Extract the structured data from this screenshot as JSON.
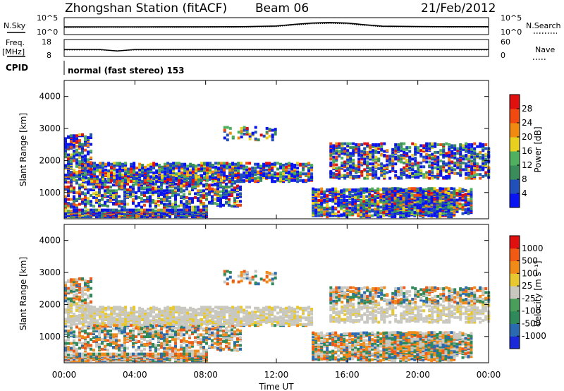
{
  "header": {
    "station": "Zhongshan Station (fitACF)",
    "beam": "Beam 06",
    "date": "21/Feb/2012"
  },
  "strips": {
    "nsky_label": "N.Sky",
    "nsearch_label": "N.Search",
    "nsky_ticks": [
      "10^5",
      "10^0"
    ],
    "freq_label_1": "Freq.",
    "freq_label_2": "[MHz]",
    "freq_ticks": [
      "18",
      "8"
    ],
    "nave_label": "Nave",
    "nave_ticks": [
      "60",
      "0"
    ],
    "cpid_label": "CPID",
    "cpid_text": "normal (fast stereo) 153"
  },
  "axes": {
    "ylabel": "Slant Range [km]",
    "xlabel": "Time UT",
    "y_ticks": [
      "1000",
      "2000",
      "3000",
      "4000"
    ],
    "x_ticks": [
      "00:00",
      "04:00",
      "08:00",
      "12:00",
      "16:00",
      "20:00",
      "00:00"
    ]
  },
  "colorbars": {
    "power": {
      "label": "Power [dB]",
      "ticks": [
        "4",
        "8",
        "12",
        "16",
        "20",
        "24",
        "28"
      ],
      "colors": [
        "#0a14f0",
        "#2050b8",
        "#3a8c5a",
        "#4fb060",
        "#e8d020",
        "#f08a10",
        "#f04a10",
        "#e01010"
      ]
    },
    "velocity": {
      "label": "Velocity [m s⁻¹]",
      "ticks": [
        "1000",
        "500",
        "100",
        "25",
        "-25",
        "-100",
        "-500",
        "-1000"
      ],
      "colors": [
        "#1a2ad8",
        "#2a6ab0",
        "#2f8a5a",
        "#4a9e5c",
        "#c8c8c0",
        "#e8c830",
        "#f08a18",
        "#f05a14",
        "#e01010"
      ]
    }
  },
  "chart_data": [
    {
      "type": "line",
      "name": "N.Sky / N.Search",
      "x_range": [
        "00:00",
        "24:00"
      ],
      "y_scale": "log",
      "y_range": [
        1,
        100000
      ],
      "note_series": "N.Sky solid, N.Search dotted",
      "x": [
        0,
        2,
        4,
        6,
        8,
        10,
        12,
        13,
        14,
        15,
        16,
        17,
        18,
        20,
        22,
        24
      ],
      "series": [
        {
          "values": [
            300,
            320,
            320,
            330,
            330,
            350,
            600,
            2000,
            5000,
            8000,
            5000,
            1500,
            500,
            400,
            350,
            350
          ]
        },
        {
          "values": [
            200,
            220,
            220,
            230,
            230,
            240,
            400,
            1200,
            3000,
            4000,
            3000,
            900,
            350,
            300,
            260,
            260
          ]
        }
      ]
    },
    {
      "type": "line",
      "name": "Freq / Nave",
      "x_range": [
        "00:00",
        "24:00"
      ],
      "y_range_freq": [
        8,
        18
      ],
      "y_range_nave": [
        0,
        60
      ],
      "x": [
        0,
        2,
        3,
        4,
        8,
        12,
        16,
        20,
        24
      ],
      "freq": [
        12.5,
        12.5,
        11.5,
        12.5,
        12.5,
        12.5,
        12.5,
        12.5,
        12.5
      ],
      "nave": [
        25,
        25,
        22,
        25,
        25,
        25,
        25,
        25,
        25
      ]
    },
    {
      "type": "heatmap",
      "name": "Power",
      "x_range": [
        "00:00",
        "24:00"
      ],
      "y_range_km": [
        180,
        4500
      ],
      "value_range": [
        0,
        30
      ],
      "units": "dB"
    },
    {
      "type": "heatmap",
      "name": "Velocity",
      "x_range": [
        "00:00",
        "24:00"
      ],
      "y_range_km": [
        180,
        4500
      ],
      "value_range": [
        -1000,
        1000
      ],
      "units": "m s-1"
    }
  ]
}
